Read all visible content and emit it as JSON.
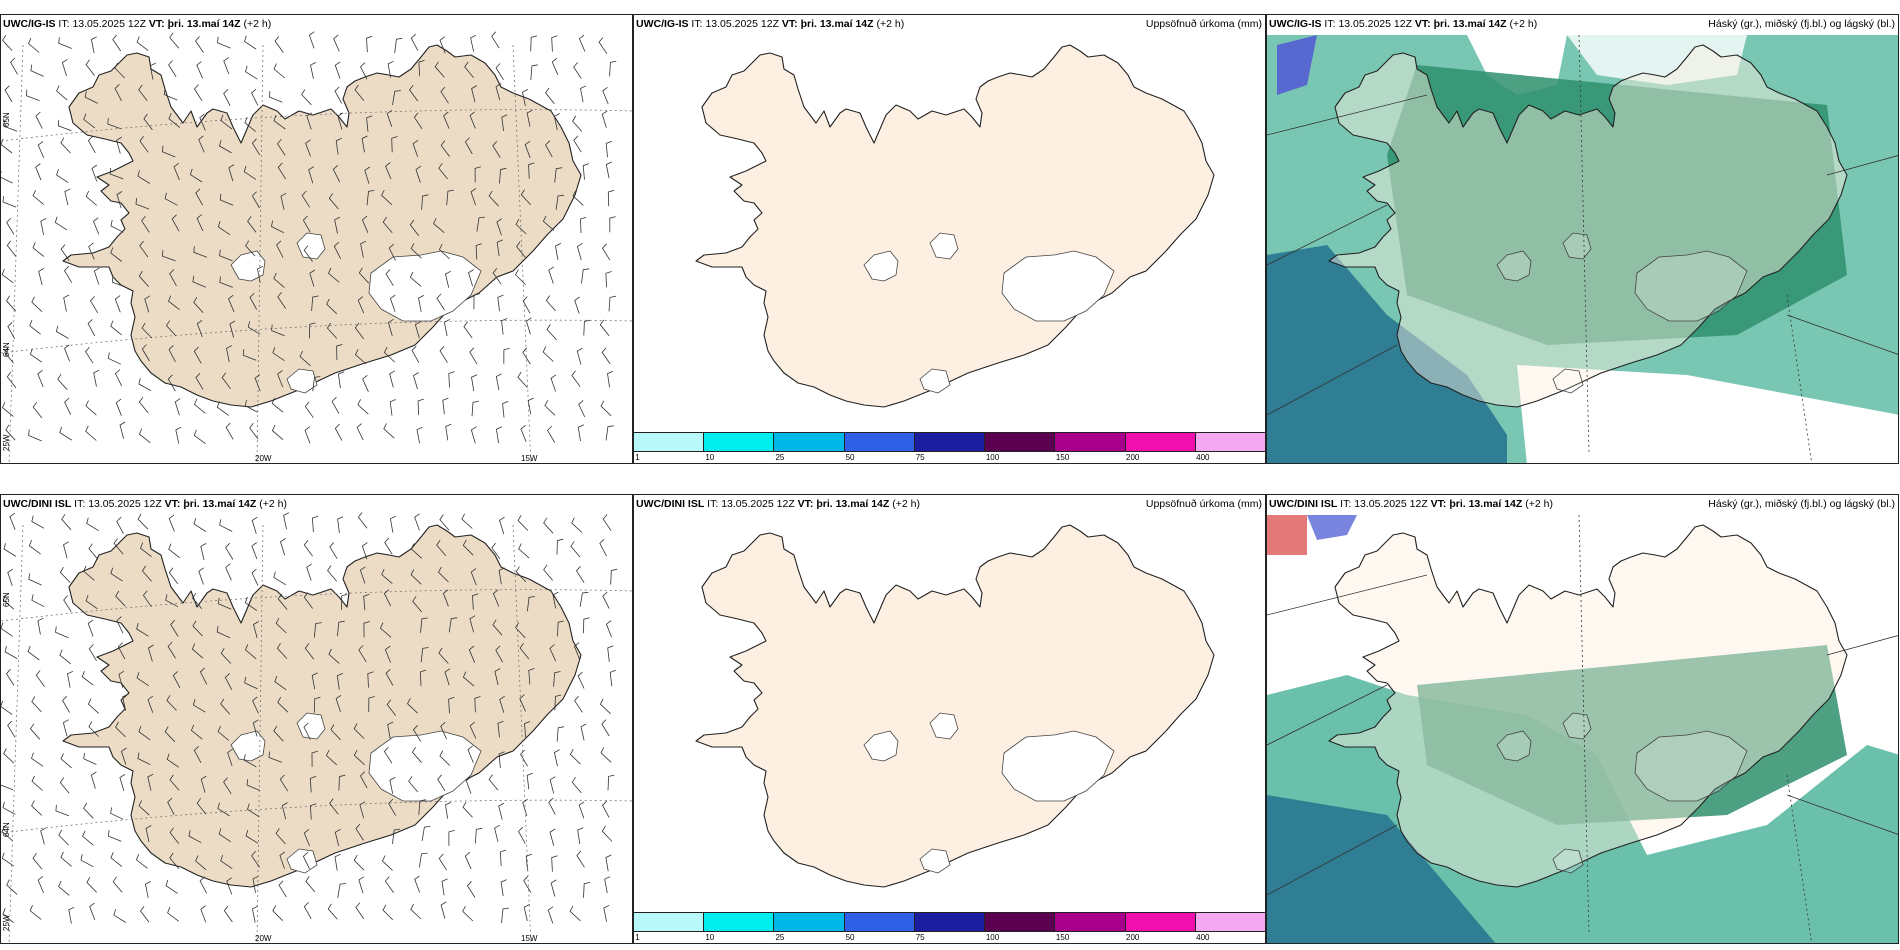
{
  "rows": [
    {
      "model": "UWC/IG-IS",
      "it_label": "IT:",
      "it_value": "13.05.2025 12Z",
      "vt_label": "VT:",
      "vt_value": "þri. 13.maí 14Z",
      "lead": "(+2 h)"
    },
    {
      "model": "UWC/DINI ISL",
      "it_label": "IT:",
      "it_value": "13.05.2025 12Z",
      "vt_label": "VT:",
      "vt_value": "þri. 13.maí 14Z",
      "lead": "(+2 h)"
    }
  ],
  "precip_title": "Uppsöfnuð úrkoma (mm)",
  "cloud_title": "Háský (gr.), miðský (fj.bl.) og lágský (bl.)",
  "colorbar": {
    "labels": [
      "1",
      "10",
      "25",
      "50",
      "75",
      "100",
      "150",
      "200",
      "400"
    ],
    "colors": [
      "#b8f8f8",
      "#00eeee",
      "#00b8e8",
      "#3060e8",
      "#1c1ca0",
      "#5c0050",
      "#a8008c",
      "#f010b0",
      "#f4a8f0"
    ]
  },
  "axes": {
    "lat_65": "65N",
    "lat_64": "64N",
    "lon_25": "25W",
    "lon_20": "20W",
    "lon_15": "15W"
  },
  "colors": {
    "land_wind": "#ecdcc6",
    "land_precip": "#fdefe1",
    "cloud_low": "#2f9c84",
    "cloud_mid": "#1e9e6c",
    "cloud_high": "#1a6e8a",
    "glacier": "#ffffff"
  }
}
